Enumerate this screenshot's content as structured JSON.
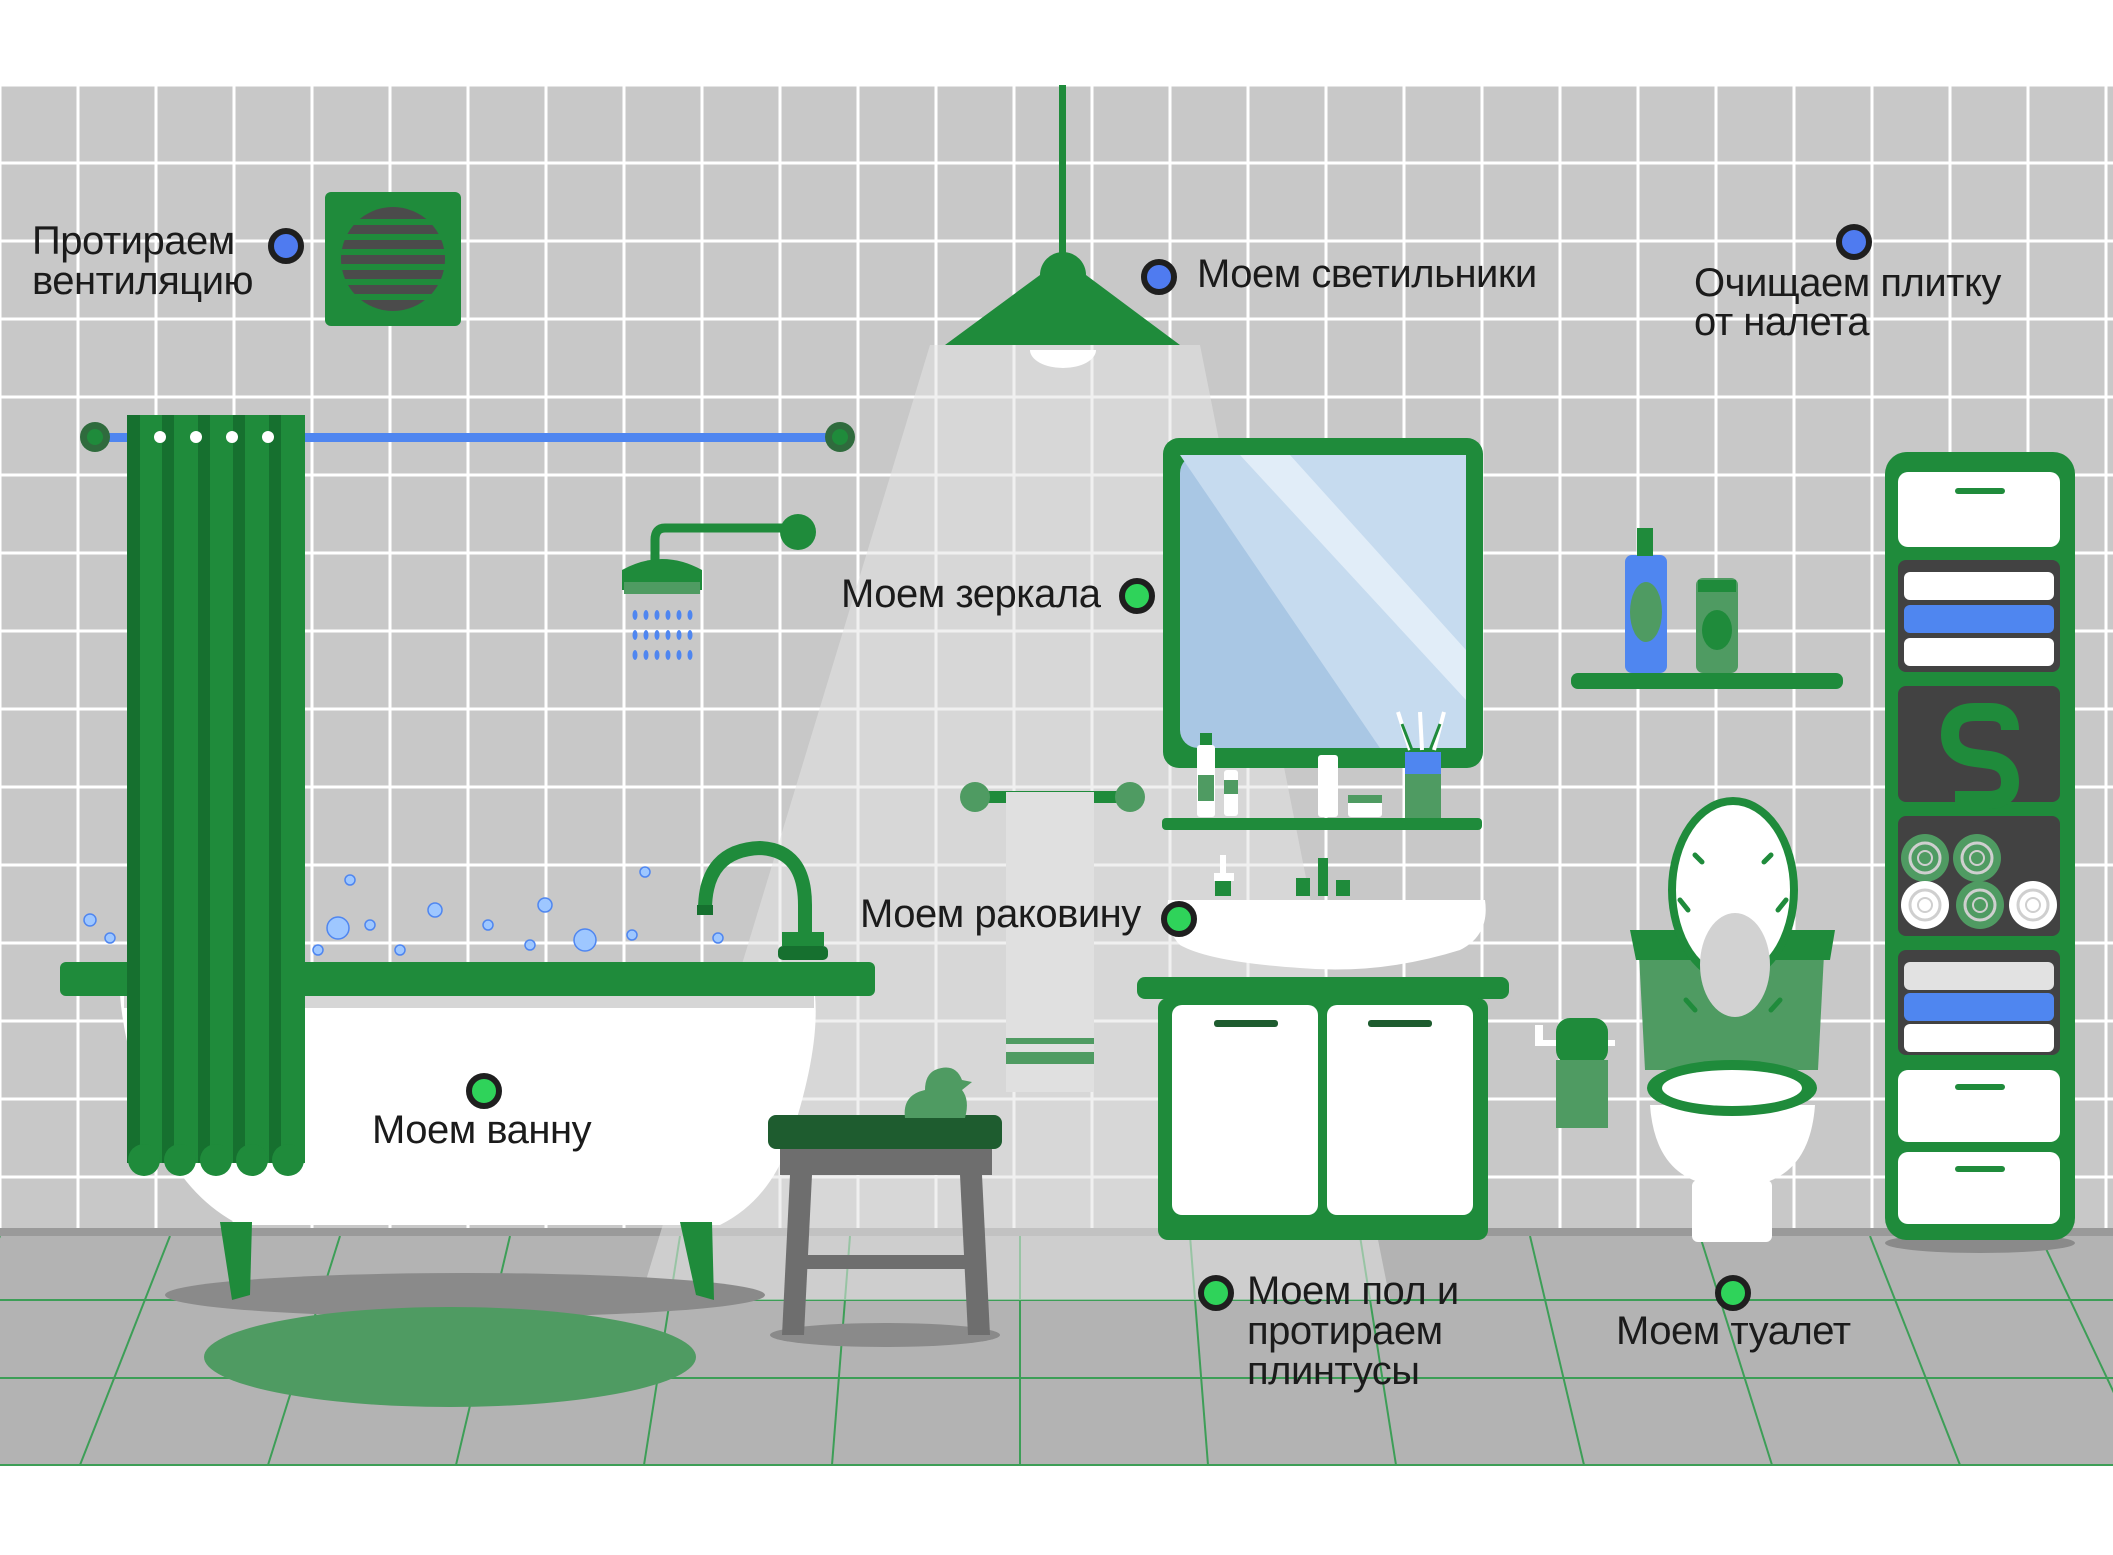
{
  "colors": {
    "wall": "#c8c8c8",
    "grout": "#ffffff",
    "floor": "#b3b3b3",
    "floor_grout": "#3d9e57",
    "green": "#1f8b3b",
    "dark_green": "#16702f",
    "light_green": "#4f9b62",
    "blue": "#4f86f0",
    "white": "#ffffff",
    "marker_blue": "#4f7bf0",
    "marker_green": "#2fd35a"
  },
  "labels": {
    "ventilation": [
      "Протираем",
      "вентиляцию"
    ],
    "lights": "Моем светильники",
    "tiles": [
      "Очищаем плитку",
      "от налета"
    ],
    "mirrors": "Моем зеркала",
    "sink": "Моем раковину",
    "bath": "Моем ванну",
    "floor": [
      "Моем пол и",
      "протираем",
      "плинтусы"
    ],
    "toilet": "Моем туалет"
  },
  "markers": [
    {
      "id": "ventilation",
      "type": "blue"
    },
    {
      "id": "lights",
      "type": "blue"
    },
    {
      "id": "tiles",
      "type": "blue"
    },
    {
      "id": "mirrors",
      "type": "green"
    },
    {
      "id": "sink",
      "type": "green"
    },
    {
      "id": "bath",
      "type": "green"
    },
    {
      "id": "floor",
      "type": "green"
    },
    {
      "id": "toilet",
      "type": "green"
    }
  ],
  "icons": {
    "fan": "ventilation-fan-icon",
    "lamp": "ceiling-lamp-icon",
    "mirror": "mirror-icon",
    "bathtub": "bathtub-icon",
    "shower": "shower-head-icon",
    "curtain": "shower-curtain-icon",
    "sink": "sink-icon",
    "toilet": "toilet-icon",
    "cabinet": "shelf-cabinet-icon",
    "stool": "stool-icon",
    "duck": "rubber-duck-icon",
    "rug": "bath-rug-icon",
    "towel": "towel-icon",
    "toilet_paper": "toilet-paper-icon",
    "bottles": "bottles-shelf-icon"
  }
}
